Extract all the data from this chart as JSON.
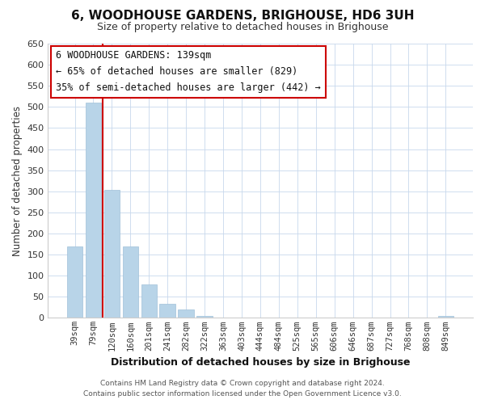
{
  "title": "6, WOODHOUSE GARDENS, BRIGHOUSE, HD6 3UH",
  "subtitle": "Size of property relative to detached houses in Brighouse",
  "xlabel": "Distribution of detached houses by size in Brighouse",
  "ylabel": "Number of detached properties",
  "bar_labels": [
    "39sqm",
    "79sqm",
    "120sqm",
    "160sqm",
    "201sqm",
    "241sqm",
    "282sqm",
    "322sqm",
    "363sqm",
    "403sqm",
    "444sqm",
    "484sqm",
    "525sqm",
    "565sqm",
    "606sqm",
    "646sqm",
    "687sqm",
    "727sqm",
    "768sqm",
    "808sqm",
    "849sqm"
  ],
  "bar_values": [
    170,
    511,
    303,
    170,
    80,
    33,
    20,
    5,
    0,
    0,
    0,
    0,
    0,
    0,
    0,
    0,
    0,
    0,
    0,
    0,
    5
  ],
  "bar_color": "#b8d4e8",
  "bar_edge_color": "#a0c0d8",
  "vline_color": "#cc0000",
  "vline_x_index": 1.5,
  "ylim": [
    0,
    650
  ],
  "yticks": [
    0,
    50,
    100,
    150,
    200,
    250,
    300,
    350,
    400,
    450,
    500,
    550,
    600,
    650
  ],
  "annotation_title": "6 WOODHOUSE GARDENS: 139sqm",
  "annotation_line1": "← 65% of detached houses are smaller (829)",
  "annotation_line2": "35% of semi-detached houses are larger (442) →",
  "annotation_box_edge": "#cc0000",
  "footer_line1": "Contains HM Land Registry data © Crown copyright and database right 2024.",
  "footer_line2": "Contains public sector information licensed under the Open Government Licence v3.0.",
  "background_color": "#ffffff",
  "grid_color": "#c8d8ec"
}
